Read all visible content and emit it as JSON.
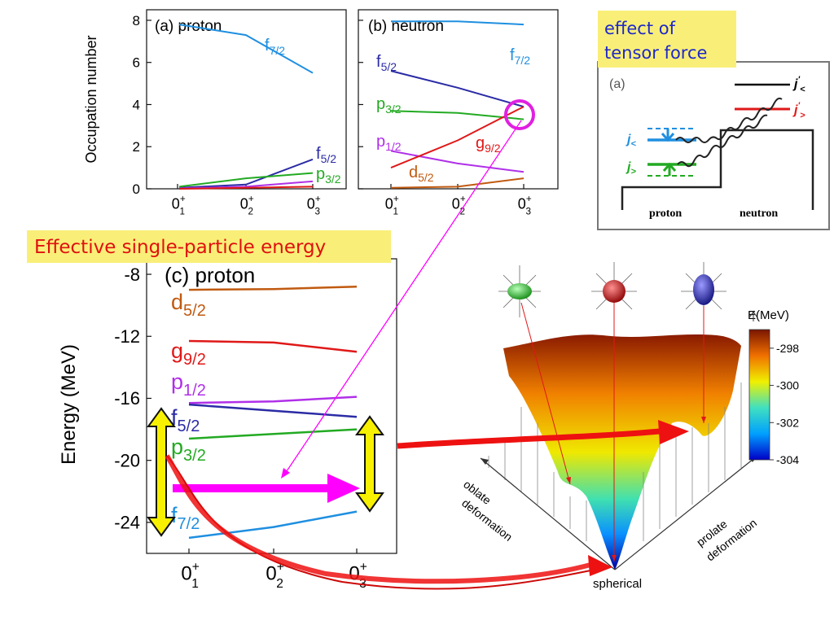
{
  "boxes": {
    "tensor_note": [
      "effect of",
      "tensor force"
    ],
    "espe_note": "Effective single-particle energy"
  },
  "colors": {
    "f72": "#1f8fe0",
    "f52": "#2b2ba6",
    "p32": "#22aa22",
    "p12": "#b030e8",
    "g92": "#e01818",
    "d52": "#c05a10",
    "note_bg": "#f9ef78",
    "note_text_blue": "#1e28c8",
    "note_text_red": "#e01010",
    "yellow_arrow": "#f7f000",
    "magenta": "#ff00ff",
    "red_arrow": "#ee1111"
  },
  "chart_data": [
    {
      "type": "line",
      "panel_label": "(a) proton",
      "ylabel": "Occupation number",
      "categories": [
        "0",
        "0",
        "0"
      ],
      "category_labels": [
        {
          "base": "0",
          "sup": "+",
          "sub": "1"
        },
        {
          "base": "0",
          "sup": "+",
          "sub": "2"
        },
        {
          "base": "0",
          "sup": "+",
          "sub": "3"
        }
      ],
      "ylim": [
        0,
        8.5
      ],
      "yticks": [
        "0",
        "2",
        "4",
        "6",
        "8"
      ],
      "series": [
        {
          "name": "f",
          "sub": "7/2",
          "color": "#1f8fe0",
          "values": [
            7.8,
            7.3,
            5.5
          ]
        },
        {
          "name": "f",
          "sub": "5/2",
          "color": "#2b2ba6",
          "values": [
            0.05,
            0.2,
            1.4
          ]
        },
        {
          "name": "p",
          "sub": "3/2",
          "color": "#22aa22",
          "values": [
            0.1,
            0.5,
            0.75
          ]
        },
        {
          "name": "",
          "sub": "",
          "color": "#b030e8",
          "values": [
            0.02,
            0.1,
            0.35
          ]
        },
        {
          "name": "",
          "sub": "",
          "color": "#e01818",
          "values": [
            0.0,
            0.05,
            0.1
          ]
        }
      ]
    },
    {
      "type": "line",
      "panel_label": "(b) neutron",
      "categories": [
        "0",
        "0",
        "0"
      ],
      "category_labels": [
        {
          "base": "0",
          "sup": "+",
          "sub": "1"
        },
        {
          "base": "0",
          "sup": "+",
          "sub": "2"
        },
        {
          "base": "0",
          "sup": "+",
          "sub": "3"
        }
      ],
      "ylim": [
        0,
        8.5
      ],
      "series": [
        {
          "name": "f",
          "sub": "7/2",
          "color": "#1f8fe0",
          "values": [
            7.95,
            7.95,
            7.8
          ]
        },
        {
          "name": "f",
          "sub": "5/2",
          "color": "#2b2ba6",
          "values": [
            5.6,
            4.8,
            3.9
          ]
        },
        {
          "name": "p",
          "sub": "3/2",
          "color": "#22aa22",
          "values": [
            3.7,
            3.6,
            3.3
          ]
        },
        {
          "name": "p",
          "sub": "1/2",
          "color": "#b030e8",
          "values": [
            1.8,
            1.2,
            0.8
          ]
        },
        {
          "name": "g",
          "sub": "9/2",
          "color": "#e01818",
          "values": [
            1.0,
            2.3,
            3.9
          ]
        },
        {
          "name": "d",
          "sub": "5/2",
          "color": "#c05a10",
          "values": [
            0.05,
            0.1,
            0.5
          ]
        }
      ]
    },
    {
      "type": "line",
      "panel_label": "(c) proton",
      "ylabel": "Energy (MeV)",
      "categories": [
        "0",
        "0",
        "0"
      ],
      "category_labels": [
        {
          "base": "0",
          "sup": "+",
          "sub": "1"
        },
        {
          "base": "0",
          "sup": "+",
          "sub": "2"
        },
        {
          "base": "0",
          "sup": "+",
          "sub": "3"
        }
      ],
      "ylim": [
        -26,
        -7
      ],
      "yticks": [
        "-8",
        "-12",
        "-16",
        "-20",
        "-24"
      ],
      "series": [
        {
          "name": "d",
          "sub": "5/2",
          "color": "#c05a10",
          "values": [
            -9.0,
            -8.95,
            -8.8
          ]
        },
        {
          "name": "g",
          "sub": "9/2",
          "color": "#e01818",
          "values": [
            -12.3,
            -12.4,
            -13.0
          ]
        },
        {
          "name": "p",
          "sub": "1/2",
          "color": "#b030e8",
          "values": [
            -16.3,
            -16.2,
            -15.9
          ]
        },
        {
          "name": "f",
          "sub": "5/2",
          "color": "#2b2ba6",
          "values": [
            -16.4,
            -16.8,
            -17.2
          ]
        },
        {
          "name": "p",
          "sub": "3/2",
          "color": "#22aa22",
          "values": [
            -18.6,
            -18.3,
            -18.0
          ]
        },
        {
          "name": "f",
          "sub": "7/2",
          "color": "#1f8fe0",
          "values": [
            -25.0,
            -24.3,
            -23.3
          ]
        }
      ]
    },
    {
      "type": "heatmap",
      "colorbar_title": "E(MeV)",
      "colorbar_range": [
        -304,
        -297
      ],
      "colorbar_ticks": [
        "-298",
        "-300",
        "-302",
        "-304"
      ],
      "axis_labels": [
        "oblate",
        "deformation",
        "prolate",
        "deformation",
        "spherical"
      ]
    }
  ],
  "inset": {
    "label": "(a)",
    "j_less_prime": {
      "base": "j",
      "sup": "'",
      "sub": "<"
    },
    "j_greater_prime": {
      "base": "j",
      "sup": "'",
      "sub": ">"
    },
    "j_less": {
      "base": "j",
      "sub": "<"
    },
    "j_greater": {
      "base": "j",
      "sub": ">"
    },
    "proton": "proton",
    "neutron": "neutron"
  }
}
